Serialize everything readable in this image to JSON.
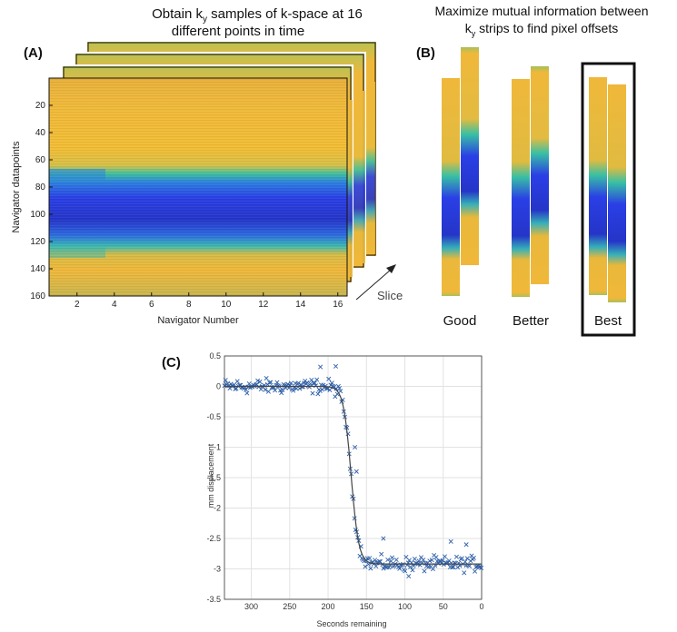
{
  "panel_a": {
    "label": "(A)",
    "title_line1_pre": "Obtain k",
    "title_sub": "y",
    "title_line1_post": " samples of k-space at 16",
    "title_line2": "different points in time",
    "ylabel": "Navigator datapoints",
    "xlabel": "Navigator Number",
    "yticks": [
      "20",
      "40",
      "60",
      "80",
      "100",
      "120",
      "140",
      "160"
    ],
    "xticks": [
      "2",
      "4",
      "6",
      "8",
      "10",
      "12",
      "14",
      "16"
    ],
    "slice_label": "Slice"
  },
  "panel_b": {
    "label": "(B)",
    "title_line1": "Maximize mutual information between",
    "title_line2_pre": "k",
    "title_sub": "y",
    "title_line2_post": " strips to find pixel offsets",
    "pairs": [
      "Good",
      "Better",
      "Best"
    ]
  },
  "panel_c": {
    "label": "(C)",
    "chart_data": {
      "type": "scatter",
      "title": "",
      "xlabel": "Seconds remaining",
      "ylabel": "mm displacement",
      "xlim": [
        335,
        0
      ],
      "ylim": [
        -3.5,
        0.5
      ],
      "xticks": [
        "300",
        "250",
        "200",
        "150",
        "100",
        "50",
        "0"
      ],
      "yticks": [
        "0.5",
        "0",
        "-0.5",
        "-1",
        "-1.5",
        "-2",
        "-2.5",
        "-3",
        "-3.5"
      ],
      "grid": true,
      "marker": "x",
      "color": "#2e5fa8",
      "fit_line": {
        "before": 0.0,
        "after": -2.92,
        "transition_center": 170,
        "transition_width": 5
      }
    }
  }
}
